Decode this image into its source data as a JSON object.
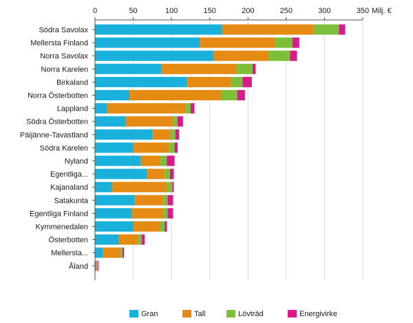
{
  "chart_data": {
    "type": "bar",
    "orientation": "horizontal",
    "stacked": true,
    "unit_label": "Milj. €",
    "xlim": [
      0,
      350
    ],
    "x_ticks": [
      "0",
      "50",
      "100",
      "150",
      "200",
      "250",
      "300",
      "350"
    ],
    "grid": true,
    "legend_position": "bottom",
    "categories": [
      "Södra Savolax",
      "Mellersta Finland",
      "Norra Savolax",
      "Norra Karelen",
      "Birkaland",
      "Norra Österbotten",
      "Lappland",
      "Södra Österbotten",
      "Päijänne-Tavastland",
      "Södra Karelen",
      "Nyland",
      "Egentliga...",
      "Kajanaland",
      "Satakunta",
      "Egentliga Finland",
      "Kymmenedalen",
      "Österbotten",
      "Mellersta...",
      "Åland"
    ],
    "series": [
      {
        "name": "Gran",
        "color": "#1ab0dc",
        "values": [
          166,
          137,
          155,
          87,
          120,
          45,
          16,
          40,
          75,
          50,
          60,
          68,
          22,
          52,
          48,
          50,
          31,
          10,
          1
        ]
      },
      {
        "name": "Tall",
        "color": "#e58a13",
        "values": [
          120,
          98,
          72,
          98,
          58,
          120,
          103,
          62,
          23,
          47,
          25,
          23,
          72,
          37,
          41,
          35,
          25,
          23,
          2
        ]
      },
      {
        "name": "Lövträd",
        "color": "#7dbf3a",
        "values": [
          33,
          23,
          28,
          21,
          15,
          21,
          6,
          6,
          7,
          7,
          9,
          7,
          7,
          6,
          6,
          6,
          5,
          3,
          0.5
        ]
      },
      {
        "name": "Energivirke",
        "color": "#d9198c",
        "values": [
          8,
          9,
          9,
          4,
          12,
          10,
          5,
          7,
          5,
          4,
          10,
          5,
          2,
          7,
          7,
          3,
          4,
          2,
          1
        ]
      }
    ]
  }
}
